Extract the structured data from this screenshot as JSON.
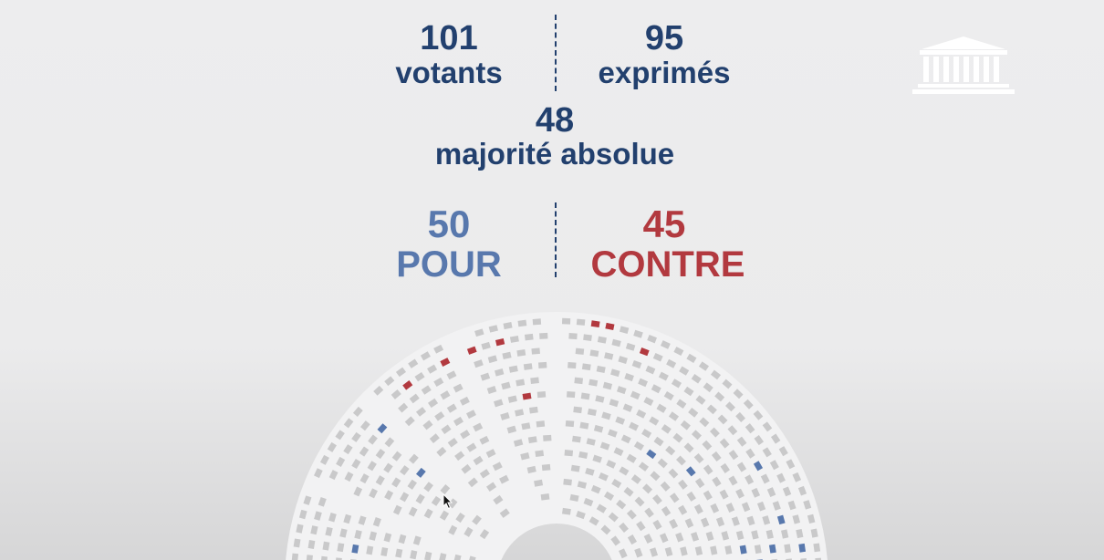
{
  "stats": {
    "votants_value": "101",
    "votants_label": "votants",
    "exprimes_value": "95",
    "exprimes_label": "exprimés",
    "majorite_value": "48",
    "majorite_label": "majorité absolue"
  },
  "result": {
    "pour_value": "50",
    "pour_label": "POUR",
    "contre_value": "45",
    "contre_label": "CONTRE"
  },
  "colors": {
    "navy": "#22406e",
    "pour": "#5878ad",
    "contre": "#b2393f",
    "seat_empty": "#c9c9ca",
    "aisle": "#f2f2f3"
  },
  "icons": {
    "logo": "assemblee-nationale-logo-icon",
    "cursor": "mouse-pointer-icon"
  }
}
